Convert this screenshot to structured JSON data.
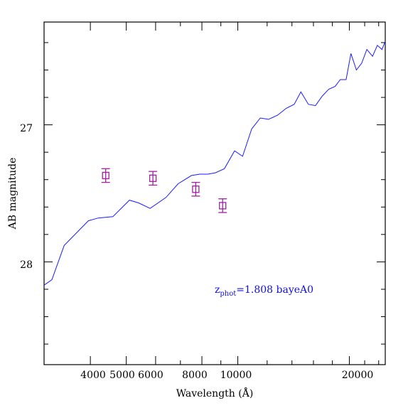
{
  "chart_data": {
    "type": "line",
    "xlabel": "Wavelength (Å)",
    "ylabel": "AB magnitude",
    "x_scale": "log",
    "xlim": [
      3000,
      25000
    ],
    "ylim": [
      28.75,
      26.25
    ],
    "x_ticks_labeled": [
      "4000",
      "5000",
      "6000",
      "8000",
      "10000",
      "20000"
    ],
    "y_ticks_labeled": [
      "27",
      "28"
    ],
    "annotation": {
      "z_label": "z",
      "z_sub": "phot",
      "text": "=1.808 bayeA0"
    },
    "colors": {
      "model": "#1a1aff",
      "photometry": "#a020a0",
      "axes": "#000000"
    },
    "series": [
      {
        "style": "line",
        "x": [
          3000,
          3150,
          3400,
          3950,
          4200,
          4600,
          5100,
          5400,
          5800,
          6400,
          6900,
          7500,
          7900,
          8300,
          8700,
          9200,
          9800,
          10300,
          10900,
          11500,
          12100,
          12800,
          13500,
          14200,
          14800,
          15500,
          16200,
          16900,
          17600,
          18300,
          18900,
          19600,
          20200,
          20900,
          21600,
          22300,
          23100,
          23800,
          24500,
          25000
        ],
        "y": [
          28.17,
          28.13,
          27.88,
          27.7,
          27.68,
          27.67,
          27.55,
          27.57,
          27.61,
          27.53,
          27.43,
          27.37,
          27.36,
          27.36,
          27.35,
          27.32,
          27.19,
          27.23,
          27.03,
          26.95,
          26.96,
          26.93,
          26.88,
          26.85,
          26.76,
          26.85,
          26.86,
          26.79,
          26.74,
          26.72,
          26.67,
          26.67,
          26.48,
          26.6,
          26.55,
          26.45,
          26.5,
          26.42,
          26.45,
          26.39
        ]
      },
      {
        "style": "points_with_errors",
        "x": [
          4400,
          5900,
          7700,
          9100
        ],
        "y": [
          27.37,
          27.39,
          27.47,
          27.59
        ],
        "yerr": [
          0.05,
          0.05,
          0.05,
          0.05
        ]
      }
    ]
  }
}
